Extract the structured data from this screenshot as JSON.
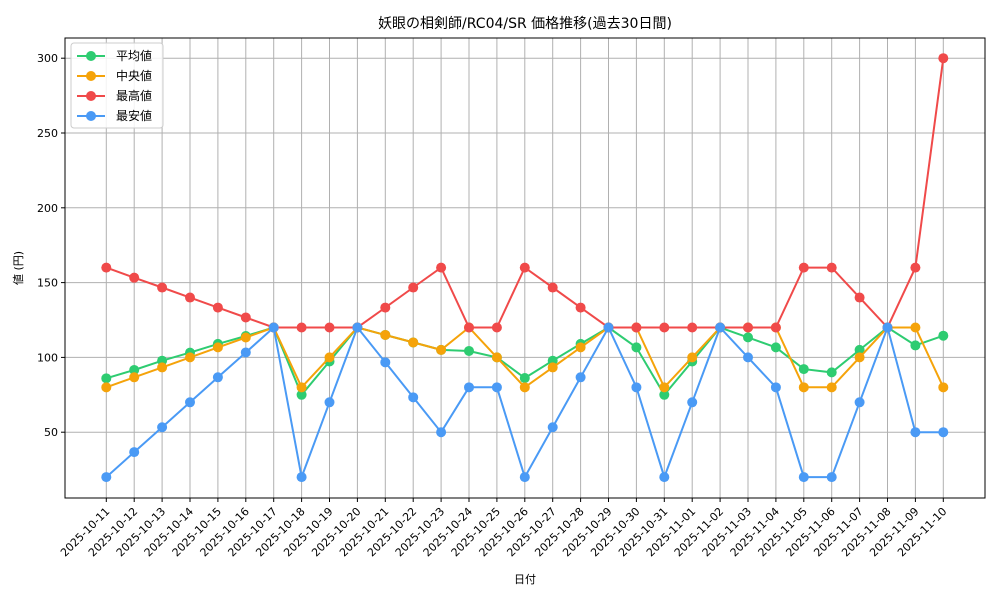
{
  "chart_data": {
    "type": "line",
    "title": "妖眼の相剣師/RC04/SR 価格推移(過去30日間)",
    "xlabel": "日付",
    "ylabel": "値 (円)",
    "ylim": [
      8,
      313
    ],
    "yticks": [
      50,
      100,
      150,
      200,
      250,
      300
    ],
    "grid": true,
    "legend_position": "upper left",
    "x": [
      "2025-10-11",
      "2025-10-12",
      "2025-10-13",
      "2025-10-14",
      "2025-10-15",
      "2025-10-16",
      "2025-10-17",
      "2025-10-18",
      "2025-10-19",
      "2025-10-20",
      "2025-10-21",
      "2025-10-22",
      "2025-10-23",
      "2025-10-24",
      "2025-10-25",
      "2025-10-26",
      "2025-10-27",
      "2025-10-28",
      "2025-10-29",
      "2025-10-30",
      "2025-10-31",
      "2025-11-01",
      "2025-11-02",
      "2025-11-03",
      "2025-11-04",
      "2025-11-05",
      "2025-11-06",
      "2025-11-07",
      "2025-11-08",
      "2025-11-09",
      "2025-11-10"
    ],
    "series": [
      {
        "name": "平均値",
        "color": "#2ecc71",
        "values": [
          86,
          91.6,
          97.8,
          103.2,
          109,
          114.3,
          120,
          75,
          97.3,
          120,
          115,
          110,
          105,
          104.3,
          100,
          86.2,
          97.8,
          109,
          120,
          106.7,
          75,
          97.3,
          120,
          113.4,
          106.7,
          92.2,
          90,
          105,
          120,
          108,
          114.5
        ]
      },
      {
        "name": "中央値",
        "color": "#f5a30a",
        "values": [
          80,
          86.7,
          93.3,
          100,
          106.7,
          113.3,
          120,
          80,
          100,
          120,
          115,
          110,
          105,
          120,
          100,
          80,
          93.3,
          106.7,
          120,
          120,
          80,
          100,
          120,
          120,
          120,
          80,
          80,
          100,
          120,
          120,
          80
        ]
      },
      {
        "name": "最高値",
        "color": "#f04a4a",
        "values": [
          160,
          153.3,
          146.7,
          140,
          133.3,
          126.7,
          120,
          120,
          120,
          120,
          133.3,
          146.7,
          160,
          120,
          120,
          160,
          146.7,
          133.3,
          120,
          120,
          120,
          120,
          120,
          120,
          120,
          160,
          160,
          140,
          120,
          160,
          300
        ]
      },
      {
        "name": "最安値",
        "color": "#4a9af5",
        "values": [
          20,
          36.7,
          53.3,
          70,
          86.7,
          103.3,
          120,
          20,
          70,
          120,
          96.7,
          73.3,
          50,
          80,
          80,
          20,
          53.3,
          86.7,
          120,
          80,
          20,
          70,
          120,
          100,
          80,
          20,
          20,
          70,
          120,
          50,
          50
        ]
      }
    ]
  }
}
